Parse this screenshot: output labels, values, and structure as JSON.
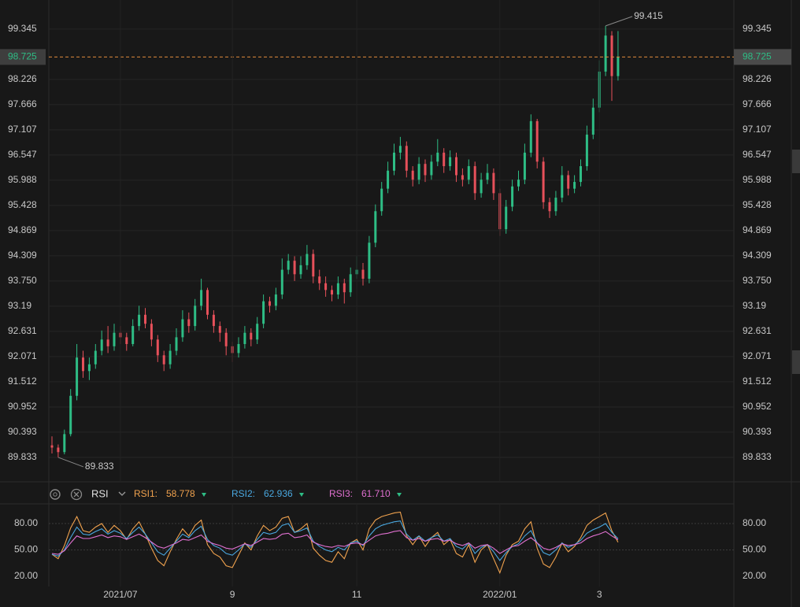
{
  "chart_data": [
    {
      "type": "candlestick",
      "ohlc": [
        [
          90.1,
          90.3,
          89.92,
          90.05
        ],
        [
          90.05,
          90.12,
          89.833,
          89.95
        ],
        [
          89.95,
          90.45,
          89.9,
          90.35
        ],
        [
          90.35,
          91.35,
          90.3,
          91.2
        ],
        [
          91.2,
          92.35,
          91.1,
          92.05
        ],
        [
          92.05,
          92.2,
          91.6,
          91.75
        ],
        [
          91.75,
          92.05,
          91.55,
          91.9
        ],
        [
          91.9,
          92.35,
          91.8,
          92.2
        ],
        [
          92.2,
          92.65,
          92.1,
          92.45
        ],
        [
          92.45,
          92.75,
          92.15,
          92.3
        ],
        [
          92.3,
          92.8,
          92.2,
          92.6
        ],
        [
          92.6,
          92.75,
          92.35,
          92.5
        ],
        [
          92.5,
          92.6,
          92.2,
          92.35
        ],
        [
          92.35,
          92.9,
          92.3,
          92.75
        ],
        [
          92.75,
          93.2,
          92.65,
          93.0
        ],
        [
          93.0,
          93.15,
          92.7,
          92.8
        ],
        [
          92.8,
          92.9,
          92.3,
          92.45
        ],
        [
          92.45,
          92.55,
          91.95,
          92.1
        ],
        [
          92.1,
          92.2,
          91.75,
          91.9
        ],
        [
          91.9,
          92.35,
          91.8,
          92.2
        ],
        [
          92.2,
          92.7,
          92.1,
          92.5
        ],
        [
          92.5,
          93.1,
          92.4,
          92.9
        ],
        [
          92.9,
          93.05,
          92.6,
          92.75
        ],
        [
          92.75,
          93.35,
          92.65,
          93.2
        ],
        [
          93.2,
          93.8,
          93.1,
          93.55
        ],
        [
          93.55,
          93.6,
          92.9,
          93.0
        ],
        [
          93.0,
          93.1,
          92.6,
          92.75
        ],
        [
          92.75,
          92.85,
          92.4,
          92.6
        ],
        [
          92.6,
          92.7,
          92.1,
          92.3
        ],
        [
          92.3,
          92.4,
          91.95,
          92.15
        ],
        [
          92.15,
          92.5,
          92.05,
          92.35
        ],
        [
          92.35,
          92.75,
          92.25,
          92.6
        ],
        [
          92.6,
          92.7,
          92.3,
          92.45
        ],
        [
          92.45,
          92.95,
          92.35,
          92.8
        ],
        [
          92.8,
          93.45,
          92.7,
          93.3
        ],
        [
          93.3,
          93.4,
          93.05,
          93.2
        ],
        [
          93.2,
          93.6,
          93.1,
          93.45
        ],
        [
          93.45,
          94.25,
          93.35,
          94.0
        ],
        [
          94.0,
          94.35,
          93.9,
          94.2
        ],
        [
          94.2,
          94.3,
          93.75,
          93.9
        ],
        [
          93.9,
          94.3,
          93.8,
          94.1
        ],
        [
          94.1,
          94.55,
          94.0,
          94.35
        ],
        [
          94.35,
          94.45,
          93.7,
          93.85
        ],
        [
          93.85,
          94.0,
          93.55,
          93.7
        ],
        [
          93.7,
          93.85,
          93.4,
          93.55
        ],
        [
          93.55,
          93.65,
          93.3,
          93.45
        ],
        [
          93.45,
          93.85,
          93.35,
          93.7
        ],
        [
          93.7,
          93.8,
          93.25,
          93.5
        ],
        [
          93.5,
          94.05,
          93.4,
          93.9
        ],
        [
          93.9,
          94.3,
          93.8,
          94.0
        ],
        [
          94.0,
          94.15,
          93.65,
          93.8
        ],
        [
          93.8,
          94.75,
          93.7,
          94.6
        ],
        [
          94.6,
          95.45,
          94.5,
          95.3
        ],
        [
          95.3,
          95.95,
          95.2,
          95.8
        ],
        [
          95.8,
          96.4,
          95.7,
          96.2
        ],
        [
          96.2,
          96.8,
          96.1,
          96.6
        ],
        [
          96.6,
          96.95,
          96.45,
          96.75
        ],
        [
          96.75,
          96.85,
          96.05,
          96.2
        ],
        [
          96.2,
          96.3,
          95.85,
          96.0
        ],
        [
          96.0,
          96.5,
          95.9,
          96.35
        ],
        [
          96.35,
          96.45,
          95.95,
          96.1
        ],
        [
          96.1,
          96.55,
          96.0,
          96.4
        ],
        [
          96.4,
          96.9,
          96.3,
          96.6
        ],
        [
          96.6,
          96.7,
          96.15,
          96.3
        ],
        [
          96.3,
          96.65,
          96.2,
          96.5
        ],
        [
          96.5,
          96.6,
          95.95,
          96.1
        ],
        [
          96.1,
          96.25,
          95.85,
          96.0
        ],
        [
          96.0,
          96.45,
          95.9,
          96.3
        ],
        [
          96.3,
          96.4,
          95.55,
          95.7
        ],
        [
          95.7,
          96.15,
          95.6,
          96.0
        ],
        [
          96.0,
          96.35,
          95.9,
          96.15
        ],
        [
          96.15,
          96.25,
          95.55,
          95.7
        ],
        [
          95.7,
          95.8,
          94.75,
          94.9
        ],
        [
          94.9,
          95.55,
          94.8,
          95.4
        ],
        [
          95.4,
          96.0,
          95.3,
          95.85
        ],
        [
          95.85,
          96.2,
          95.75,
          96.0
        ],
        [
          96.0,
          96.8,
          95.9,
          96.6
        ],
        [
          96.6,
          97.45,
          96.5,
          97.3
        ],
        [
          97.3,
          97.35,
          96.25,
          96.4
        ],
        [
          96.4,
          96.5,
          95.35,
          95.5
        ],
        [
          95.5,
          95.6,
          95.15,
          95.3
        ],
        [
          95.3,
          95.75,
          95.2,
          95.6
        ],
        [
          95.6,
          96.3,
          95.5,
          96.1
        ],
        [
          96.1,
          96.2,
          95.65,
          95.8
        ],
        [
          95.8,
          96.1,
          95.7,
          95.95
        ],
        [
          95.95,
          96.45,
          95.85,
          96.3
        ],
        [
          96.3,
          97.2,
          96.2,
          97.0
        ],
        [
          97.0,
          97.8,
          96.9,
          97.6
        ],
        [
          97.6,
          98.65,
          97.5,
          98.4
        ],
        [
          98.4,
          99.415,
          98.3,
          99.2
        ],
        [
          99.2,
          99.3,
          97.75,
          98.3
        ],
        [
          98.3,
          99.3,
          98.2,
          98.725
        ]
      ],
      "up_color": "#2ebd85",
      "down_color": "#e6505a",
      "price_line_color": "#e08a3c",
      "ylim": [
        89.29,
        99.99
      ],
      "yticks": [
        89.833,
        90.393,
        90.952,
        91.512,
        92.071,
        92.631,
        93.19,
        {
          "value": 93.75,
          "label": "93.750"
        },
        94.309,
        94.869,
        95.428,
        95.988,
        96.547,
        97.107,
        97.666,
        98.226,
        99.345
      ],
      "grid": true
    },
    {
      "type": "line",
      "indicator": "RSI",
      "categories": [
        null,
        null,
        null,
        null,
        null,
        null,
        null,
        null,
        null,
        null,
        null,
        "2021/07",
        null,
        null,
        null,
        null,
        null,
        null,
        null,
        null,
        null,
        null,
        null,
        null,
        null,
        null,
        null,
        null,
        null,
        "9",
        null,
        null,
        null,
        null,
        null,
        null,
        null,
        null,
        null,
        null,
        null,
        null,
        null,
        null,
        null,
        null,
        null,
        null,
        null,
        "11",
        null,
        null,
        null,
        null,
        null,
        null,
        null,
        null,
        null,
        null,
        null,
        null,
        null,
        null,
        null,
        null,
        null,
        null,
        null,
        null,
        null,
        null,
        "2022/01",
        null,
        null,
        null,
        null,
        null,
        null,
        null,
        null,
        null,
        null,
        null,
        null,
        null,
        null,
        null,
        "3",
        null,
        null,
        null
      ],
      "series": [
        {
          "name": "RSI1:",
          "color": "#f0a24e",
          "value_label": "58.778",
          "values": [
            45,
            40,
            55,
            75,
            88,
            72,
            70,
            76,
            80,
            70,
            78,
            72,
            62,
            74,
            82,
            68,
            52,
            38,
            32,
            48,
            62,
            74,
            66,
            78,
            84,
            56,
            46,
            42,
            32,
            30,
            44,
            58,
            50,
            66,
            78,
            72,
            76,
            86,
            88,
            70,
            74,
            80,
            52,
            44,
            38,
            36,
            48,
            40,
            58,
            62,
            50,
            74,
            84,
            88,
            90,
            92,
            93,
            66,
            56,
            66,
            54,
            64,
            70,
            56,
            62,
            46,
            42,
            56,
            36,
            50,
            56,
            40,
            24,
            44,
            56,
            60,
            74,
            82,
            52,
            34,
            30,
            42,
            58,
            48,
            54,
            64,
            78,
            84,
            88,
            92,
            72,
            58.778
          ]
        },
        {
          "name": "RSI2:",
          "color": "#4aa8e0",
          "value_label": "62.936",
          "values": [
            45,
            43,
            50,
            64,
            76,
            68,
            67,
            71,
            74,
            68,
            72,
            69,
            63,
            70,
            76,
            68,
            58,
            48,
            44,
            52,
            60,
            68,
            64,
            72,
            77,
            62,
            55,
            52,
            46,
            44,
            50,
            57,
            53,
            62,
            70,
            68,
            70,
            78,
            80,
            70,
            72,
            75,
            60,
            54,
            50,
            48,
            53,
            50,
            58,
            60,
            55,
            66,
            74,
            78,
            80,
            82,
            83,
            68,
            61,
            66,
            60,
            64,
            67,
            60,
            63,
            54,
            51,
            58,
            46,
            53,
            56,
            48,
            38,
            47,
            54,
            57,
            66,
            72,
            58,
            47,
            44,
            50,
            58,
            53,
            56,
            61,
            69,
            73,
            76,
            80,
            70,
            62.936
          ]
        },
        {
          "name": "RSI3:",
          "color": "#e070d0",
          "value_label": "61.710",
          "values": [
            46,
            45,
            49,
            58,
            66,
            63,
            63,
            65,
            67,
            64,
            66,
            65,
            62,
            65,
            68,
            64,
            59,
            54,
            52,
            55,
            58,
            62,
            61,
            64,
            67,
            60,
            57,
            55,
            52,
            51,
            54,
            57,
            55,
            59,
            63,
            62,
            63,
            68,
            69,
            64,
            65,
            67,
            59,
            56,
            54,
            53,
            55,
            54,
            57,
            58,
            56,
            61,
            66,
            68,
            69,
            71,
            72,
            64,
            61,
            63,
            60,
            62,
            63,
            60,
            61,
            57,
            55,
            58,
            52,
            55,
            56,
            52,
            46,
            50,
            54,
            55,
            60,
            64,
            58,
            52,
            50,
            53,
            57,
            55,
            56,
            58,
            63,
            66,
            68,
            71,
            66,
            61.71
          ]
        }
      ],
      "ylim": [
        8.4,
        102.4
      ],
      "yticks": [
        {
          "value": 20,
          "label": "20.00"
        },
        {
          "value": 50,
          "label": "50.00"
        },
        {
          "value": 80,
          "label": "80.00"
        }
      ],
      "grid": true
    }
  ]
}
